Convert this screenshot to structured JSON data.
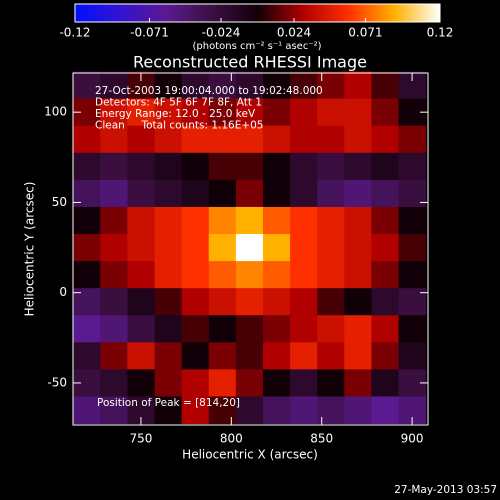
{
  "chart_data": {
    "type": "heatmap",
    "title": "Reconstructed RHESSI Image",
    "colorbar_label": "(photons cm⁻² s⁻¹ asec⁻²)",
    "clim": [
      -0.12,
      0.12
    ],
    "cticks": [
      -0.12,
      -0.071,
      -0.024,
      0.024,
      0.071,
      0.12
    ],
    "colormap": [
      "#0010ff",
      "#3412d0",
      "#5a1a90",
      "#3a0f40",
      "#120008",
      "#b00000",
      "#ff3000",
      "#ffb000",
      "#ffffff"
    ],
    "x_label": "Heliocentric X (arcsec)",
    "y_label": "Heliocentric Y (arcsec)",
    "xlim": [
      712.4,
      908.8
    ],
    "ylim": [
      -73.3,
      121.7
    ],
    "xticks": [
      750,
      800,
      850,
      900
    ],
    "yticks": [
      -50,
      0,
      50,
      100
    ],
    "x": [
      720,
      735,
      750,
      765,
      780,
      795,
      810,
      825,
      840,
      855,
      870,
      885,
      900
    ],
    "y": [
      115,
      100,
      85,
      70,
      55,
      40,
      25,
      10,
      -5,
      -20,
      -35,
      -50,
      -65
    ],
    "z": [
      [
        -0.03,
        -0.02,
        0.01,
        0.0,
        -0.02,
        -0.03,
        -0.02,
        0.0,
        0.01,
        0.02,
        0.03,
        0.01,
        -0.02
      ],
      [
        0.02,
        0.04,
        0.05,
        0.04,
        0.03,
        0.02,
        0.03,
        0.02,
        0.03,
        0.04,
        0.04,
        0.02,
        0.0
      ],
      [
        0.03,
        0.04,
        0.03,
        0.04,
        0.05,
        0.05,
        0.05,
        0.04,
        0.03,
        0.03,
        0.04,
        0.03,
        0.02
      ],
      [
        -0.02,
        -0.03,
        -0.02,
        -0.01,
        0.0,
        0.01,
        0.01,
        0.0,
        -0.02,
        -0.03,
        -0.02,
        -0.01,
        -0.02
      ],
      [
        -0.04,
        -0.05,
        -0.03,
        -0.02,
        -0.01,
        0.0,
        0.02,
        0.0,
        -0.02,
        -0.04,
        -0.05,
        -0.04,
        -0.03
      ],
      [
        0.0,
        0.02,
        0.04,
        0.05,
        0.06,
        0.08,
        0.09,
        0.07,
        0.06,
        0.05,
        0.04,
        0.02,
        0.0
      ],
      [
        0.02,
        0.03,
        0.04,
        0.05,
        0.06,
        0.09,
        0.12,
        0.09,
        0.06,
        0.05,
        0.04,
        0.03,
        0.01
      ],
      [
        0.0,
        0.02,
        0.03,
        0.05,
        0.06,
        0.07,
        0.08,
        0.07,
        0.06,
        0.05,
        0.04,
        0.02,
        0.0
      ],
      [
        -0.04,
        -0.03,
        -0.01,
        0.01,
        0.03,
        0.04,
        0.05,
        0.04,
        0.03,
        0.01,
        0.0,
        -0.02,
        -0.03
      ],
      [
        -0.06,
        -0.05,
        -0.03,
        -0.01,
        0.01,
        0.0,
        0.01,
        0.02,
        0.03,
        0.04,
        0.05,
        0.03,
        0.0
      ],
      [
        -0.02,
        0.02,
        0.04,
        0.02,
        0.0,
        0.02,
        0.01,
        0.03,
        0.05,
        0.03,
        0.05,
        0.02,
        -0.01
      ],
      [
        -0.03,
        -0.02,
        0.0,
        0.02,
        0.03,
        0.05,
        0.02,
        0.0,
        -0.02,
        0.0,
        0.02,
        -0.01,
        -0.03
      ],
      [
        -0.05,
        -0.04,
        -0.02,
        0.0,
        0.03,
        0.01,
        -0.02,
        -0.04,
        -0.05,
        -0.04,
        -0.05,
        -0.06,
        -0.05
      ]
    ],
    "annotations": [
      "27-Oct-2003 19:00:04.000 to 19:02:48.000",
      "Detectors: 4F 5F 6F 7F 8F, Att 1",
      "Energy Range: 12.0 - 25.0 keV",
      "Clean     Total counts: 1.16E+05"
    ],
    "peak_label": "Position of Peak = [814,20]",
    "timestamp": "27-May-2013 03:57"
  }
}
